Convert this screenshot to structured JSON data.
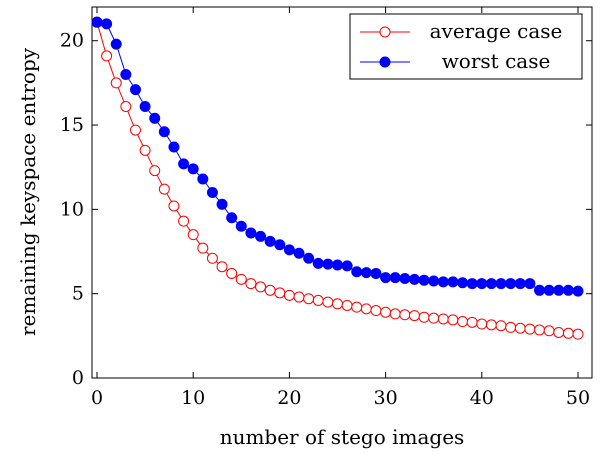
{
  "chart_data": {
    "type": "line",
    "title": "",
    "xlabel": "number of stego images",
    "ylabel": "remaining keyspace entropy",
    "xlim": [
      0,
      50
    ],
    "ylim": [
      0,
      22
    ],
    "x_ticks": [
      0,
      10,
      20,
      30,
      40,
      50
    ],
    "y_ticks": [
      0,
      5,
      10,
      15,
      20
    ],
    "grid": false,
    "legend_position": "top-right",
    "x": [
      0,
      1,
      2,
      3,
      4,
      5,
      6,
      7,
      8,
      9,
      10,
      11,
      12,
      13,
      14,
      15,
      16,
      17,
      18,
      19,
      20,
      21,
      22,
      23,
      24,
      25,
      26,
      27,
      28,
      29,
      30,
      31,
      32,
      33,
      34,
      35,
      36,
      37,
      38,
      39,
      40,
      41,
      42,
      43,
      44,
      45,
      46,
      47,
      48,
      49,
      50
    ],
    "series": [
      {
        "name": "average case",
        "color": "#ff0000",
        "marker": "open-circle",
        "values": [
          21.1,
          19.1,
          17.5,
          16.1,
          14.7,
          13.5,
          12.3,
          11.2,
          10.2,
          9.3,
          8.5,
          7.7,
          7.1,
          6.6,
          6.2,
          5.85,
          5.6,
          5.4,
          5.2,
          5.05,
          4.9,
          4.8,
          4.7,
          4.6,
          4.5,
          4.4,
          4.3,
          4.2,
          4.1,
          4.0,
          3.9,
          3.8,
          3.75,
          3.7,
          3.6,
          3.55,
          3.5,
          3.45,
          3.35,
          3.3,
          3.2,
          3.15,
          3.1,
          3.0,
          2.95,
          2.9,
          2.85,
          2.8,
          2.7,
          2.65,
          2.6
        ]
      },
      {
        "name": "worst case",
        "color": "#0000ff",
        "marker": "filled-circle",
        "values": [
          21.1,
          21.0,
          19.8,
          18.0,
          17.1,
          16.1,
          15.4,
          14.6,
          13.7,
          12.7,
          12.4,
          11.8,
          11.0,
          10.3,
          9.5,
          9.0,
          8.6,
          8.4,
          8.1,
          7.9,
          7.6,
          7.4,
          7.1,
          6.8,
          6.75,
          6.7,
          6.65,
          6.3,
          6.25,
          6.2,
          5.95,
          5.95,
          5.9,
          5.85,
          5.8,
          5.75,
          5.7,
          5.7,
          5.65,
          5.6,
          5.6,
          5.6,
          5.6,
          5.6,
          5.6,
          5.6,
          5.2,
          5.2,
          5.2,
          5.2,
          5.15
        ]
      }
    ]
  }
}
